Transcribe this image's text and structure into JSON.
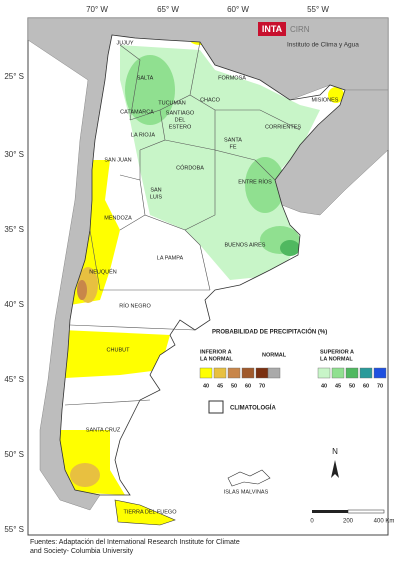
{
  "logo": {
    "inta": "INTA",
    "cirn": "CIRN",
    "institute": "Instituto de Clima y Agua"
  },
  "axes": {
    "longitude": [
      "70° W",
      "65° W",
      "60° W",
      "55° W"
    ],
    "latitude": [
      "25° S",
      "30° S",
      "35° S",
      "40° S",
      "45° S",
      "50° S",
      "55° S"
    ]
  },
  "provinces": [
    [
      "JUJUY"
    ],
    [
      "SALTA"
    ],
    [
      "FORMOSA"
    ],
    [
      "MISIONES"
    ],
    [
      "CHACO"
    ],
    [
      "CATAMARCA"
    ],
    [
      "TUCUMAN"
    ],
    [
      "SANTIAGO",
      "DEL",
      "ESTERO"
    ],
    [
      "CORRIENTES"
    ],
    [
      "LA RIOJA"
    ],
    [
      "SAN JUAN"
    ],
    [
      "SANTA",
      "FE"
    ],
    [
      "CÓRDOBA"
    ],
    [
      "ENTRE RÍOS"
    ],
    [
      "SAN",
      "LUIS"
    ],
    [
      "MENDOZA"
    ],
    [
      "BUENOS AIRES"
    ],
    [
      "LA PAMPA"
    ],
    [
      "NEUQUÉN"
    ],
    [
      "RÍO NEGRO"
    ],
    [
      "CHUBUT"
    ],
    [
      "SANTA CRUZ"
    ],
    [
      "TIERRA DEL FUEGO"
    ],
    [
      "ISLAS MALVINAS"
    ]
  ],
  "legend": {
    "title": "PROBABILIDAD DE PRECIPITACIÓN (%)",
    "below": {
      "label": [
        "INFERIOR A",
        "LA NORMAL"
      ],
      "items": [
        {
          "value": 40,
          "color": "#ffff00"
        },
        {
          "value": 45,
          "color": "#e8c040"
        },
        {
          "value": 50,
          "color": "#c8864a"
        },
        {
          "value": 60,
          "color": "#a05a2c"
        },
        {
          "value": 70,
          "color": "#7a3010"
        }
      ]
    },
    "normal": {
      "label": "NORMAL",
      "color": "#aaaaaa"
    },
    "above": {
      "label": [
        "SUPERIOR A",
        "LA NORMAL"
      ],
      "items": [
        {
          "value": 40,
          "color": "#c8f5c8"
        },
        {
          "value": 45,
          "color": "#90e090"
        },
        {
          "value": 50,
          "color": "#50b860"
        },
        {
          "value": 60,
          "color": "#2a9a9a"
        },
        {
          "value": 70,
          "color": "#1e50e0"
        }
      ]
    },
    "climatology": "CLIMATOLOGÍA"
  },
  "scale": {
    "north": "N",
    "ticks": [
      "0",
      "200",
      "400 Km"
    ]
  },
  "source": [
    "Fuentes: Adaptación del International Research Institute for Climate",
    "and Society- Columbia University"
  ]
}
